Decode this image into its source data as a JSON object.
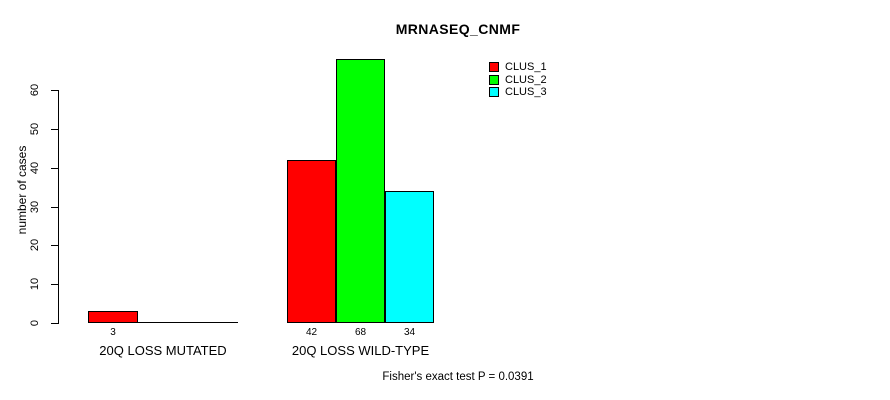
{
  "chart_data": {
    "type": "bar",
    "title": "MRNASEQ_CNMF",
    "xlabel": "",
    "ylabel": "number of cases",
    "yticks": [
      0,
      10,
      20,
      30,
      40,
      50,
      60
    ],
    "ylim": [
      0,
      70
    ],
    "grid": false,
    "legend_position": "top-right-inside",
    "categories": [
      "20Q LOSS MUTATED",
      "20Q LOSS WILD-TYPE"
    ],
    "series": [
      {
        "name": "CLUS_1",
        "color": "#ff0000",
        "values": [
          3,
          42
        ]
      },
      {
        "name": "CLUS_2",
        "color": "#00ff00",
        "values": [
          0,
          68
        ]
      },
      {
        "name": "CLUS_3",
        "color": "#00ffff",
        "values": [
          0,
          34
        ]
      }
    ],
    "bar_value_labels": {
      "show": true,
      "hide_zero": true
    },
    "annotation": "Fisher's exact test P = 0.0391",
    "axis_color": "#000000",
    "bar_border_color": "#000000",
    "background_color": "#ffffff"
  }
}
